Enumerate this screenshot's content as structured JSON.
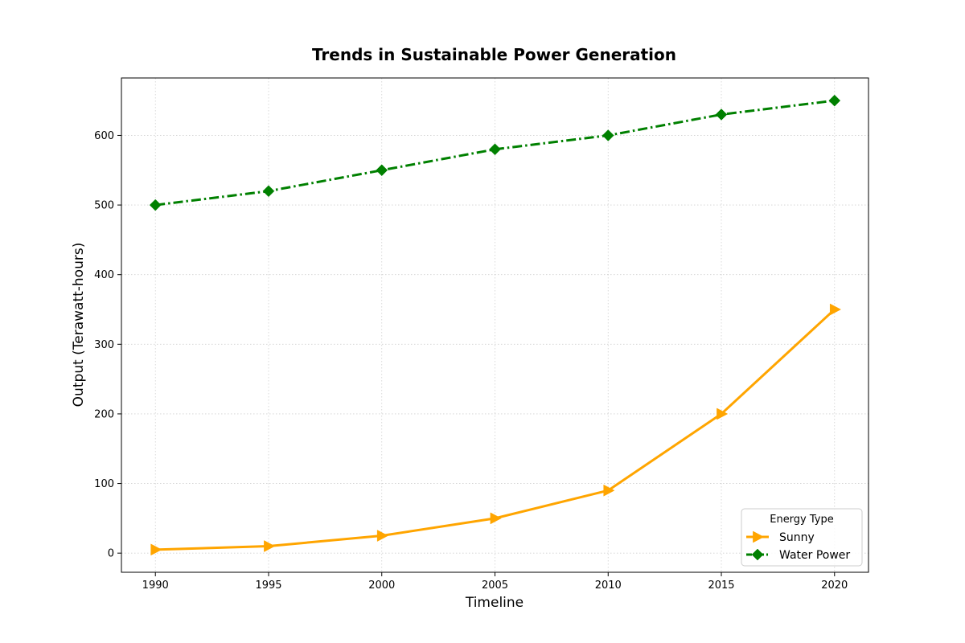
{
  "chart_data": {
    "type": "line",
    "title": "Trends in Sustainable Power Generation",
    "xlabel": "Timeline",
    "ylabel": "Output (Terawatt-hours)",
    "x": [
      1990,
      1995,
      2000,
      2005,
      2010,
      2015,
      2020
    ],
    "x_ticks": [
      "1990",
      "1995",
      "2000",
      "2005",
      "2010",
      "2015",
      "2020"
    ],
    "xlim": [
      1988.5,
      2021.5
    ],
    "ylim": [
      -27.5,
      682.5
    ],
    "y_ticks": [
      0,
      100,
      200,
      300,
      400,
      500,
      600
    ],
    "grid": true,
    "legend": {
      "title": "Energy Type",
      "placement": "lower-right"
    },
    "series": [
      {
        "name": "Sunny",
        "values": [
          5,
          10,
          25,
          50,
          90,
          200,
          350
        ],
        "color": "#FFA500",
        "marker": "triangle-right",
        "line_style": "solid"
      },
      {
        "name": "Water Power",
        "values": [
          500,
          520,
          550,
          580,
          600,
          630,
          650
        ],
        "color": "#008000",
        "marker": "diamond",
        "line_style": "dash-dot"
      }
    ]
  }
}
